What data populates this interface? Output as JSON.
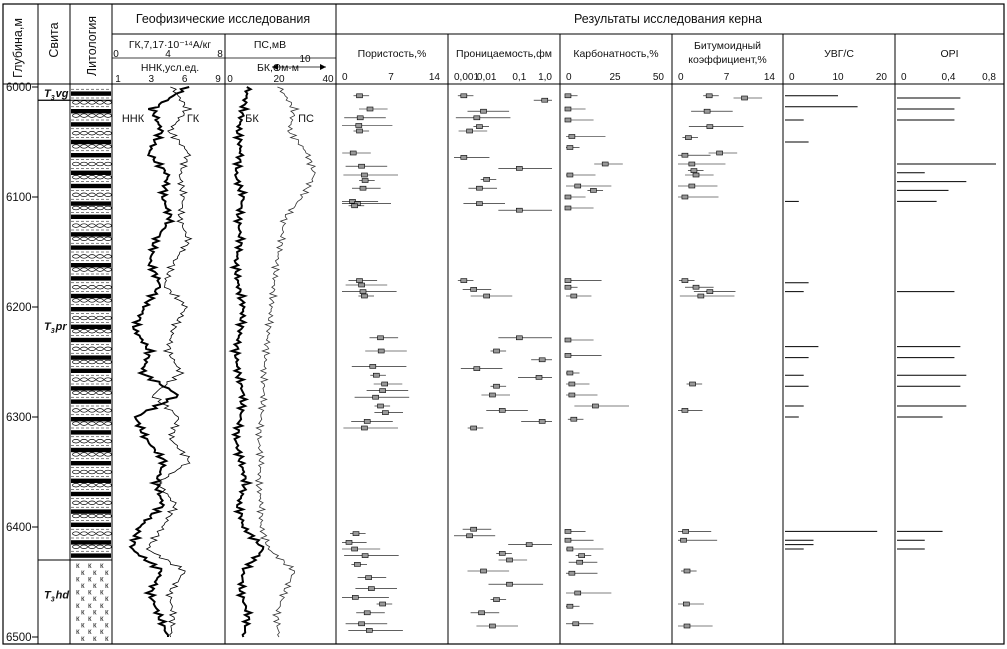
{
  "headers": {
    "depth": "Глубина,м",
    "suite": "Свита",
    "lithology": "Литология",
    "geophysics": "Геофизические исследования",
    "core_results": "Результаты исследования керна"
  },
  "geophysics_tracks": {
    "track1": {
      "label_top": "ГК,7,17·10⁻¹⁴А/кг",
      "label_bottom": "ННК,усл.ед.",
      "gk_ticks": [
        "0",
        "4",
        "8"
      ],
      "nnk_ticks": [
        "1",
        "3",
        "6",
        "9"
      ],
      "curve_names": [
        "ННК",
        "ГК"
      ]
    },
    "track2": {
      "label_top": "ПС,мВ",
      "ps_scale": "10",
      "label_bottom": "БК,Ом·м",
      "bk_ticks": [
        "0",
        "20",
        "40"
      ],
      "curve_names": [
        "БК",
        "ПС"
      ]
    }
  },
  "core_columns": [
    {
      "title": "Пористость,%",
      "ticks": [
        "0",
        "7",
        "14"
      ]
    },
    {
      "title": "Проницаемость,фм",
      "ticks": [
        "0,001",
        "0,01",
        "0,1",
        "1,0"
      ]
    },
    {
      "title": "Карбонатность,%",
      "ticks": [
        "0",
        "25",
        "50"
      ]
    },
    {
      "title_line1": "Битумоидный",
      "title_line2": "коэффициент,%",
      "ticks": [
        "0",
        "7",
        "14"
      ]
    },
    {
      "title": "УВГ/С",
      "ticks": [
        "0",
        "10",
        "20"
      ]
    },
    {
      "title": "OPI",
      "ticks": [
        "0",
        "0,4",
        "0,8"
      ]
    }
  ],
  "depth_labels": [
    "6000",
    "6100",
    "6200",
    "6300",
    "6400",
    "6500"
  ],
  "suites": [
    {
      "label": "T₃vg",
      "top": 6000,
      "bottom": 6012
    },
    {
      "label": "T₃pr",
      "top": 6012,
      "bottom": 6430
    },
    {
      "label": "T₃hd",
      "top": 6430,
      "bottom": 6500
    }
  ],
  "chart_data": [
    {
      "type": "line",
      "title": "Геофизические исследования",
      "y_axis": "Глубина,м",
      "ylim": [
        6000,
        6500
      ],
      "series": [
        {
          "name": "ННК",
          "unit": "усл.ед.",
          "xlim": [
            1,
            9
          ],
          "depth": [
            6000,
            6020,
            6040,
            6060,
            6080,
            6100,
            6120,
            6140,
            6160,
            6180,
            6200,
            6220,
            6240,
            6260,
            6280,
            6300,
            6320,
            6340,
            6360,
            6380,
            6400,
            6420,
            6440,
            6460,
            6480,
            6500
          ],
          "values": [
            6.5,
            3.8,
            4.5,
            3.5,
            5.0,
            4.6,
            5.2,
            4.0,
            3.6,
            4.4,
            3.2,
            2.4,
            3.6,
            3.0,
            5.8,
            2.5,
            3.3,
            4.7,
            4.1,
            4.6,
            2.8,
            2.2,
            4.5,
            3.6,
            4.3,
            5.0
          ]
        },
        {
          "name": "ГК",
          "unit": "7,17·10⁻¹⁴А/кг",
          "xlim": [
            0,
            8
          ],
          "depth": [
            6000,
            6020,
            6040,
            6060,
            6080,
            6100,
            6120,
            6140,
            6160,
            6180,
            6200,
            6220,
            6240,
            6260,
            6280,
            6300,
            6320,
            6340,
            6360,
            6380,
            6400,
            6420,
            6440,
            6460,
            6480,
            6500
          ],
          "values": [
            4.3,
            5.5,
            4.1,
            5.6,
            4.9,
            5.2,
            4.9,
            5.6,
            4.4,
            3.7,
            5.4,
            4.4,
            4.0,
            5.0,
            2.8,
            4.8,
            4.2,
            5.7,
            3.2,
            4.6,
            3.6,
            2.4,
            5.3,
            4.1,
            4.4,
            4.2
          ]
        },
        {
          "name": "БК",
          "unit": "Ом·м",
          "xlim": [
            0,
            40
          ],
          "depth": [
            6000,
            6020,
            6040,
            6060,
            6080,
            6100,
            6120,
            6140,
            6160,
            6180,
            6200,
            6220,
            6240,
            6260,
            6280,
            6300,
            6320,
            6340,
            6360,
            6380,
            6400,
            6420,
            6440,
            6460,
            6480,
            6500
          ],
          "values": [
            8,
            6,
            4,
            5,
            3,
            6,
            4,
            5,
            3,
            4,
            6,
            5,
            3,
            4,
            6,
            5,
            3,
            5,
            7,
            4,
            6,
            14,
            6,
            5,
            8,
            6
          ]
        },
        {
          "name": "ПС",
          "unit": "мВ",
          "xlim": [
            0,
            40
          ],
          "depth": [
            6000,
            6020,
            6040,
            6060,
            6080,
            6100,
            6120,
            6140,
            6160,
            6180,
            6200,
            6220,
            6240,
            6260,
            6280,
            6300,
            6320,
            6340,
            6360,
            6380,
            6400,
            6420,
            6440,
            6460,
            6480,
            6500
          ],
          "values": [
            20,
            26,
            24,
            31,
            34,
            29,
            22,
            21,
            19,
            18,
            17,
            16,
            15,
            14,
            14,
            13,
            12,
            13,
            12,
            13,
            13,
            16,
            26,
            22,
            19,
            20
          ]
        }
      ]
    },
    {
      "type": "scatter",
      "title": "Пористость,%",
      "xlim": [
        0,
        14
      ],
      "points": [
        [
          6008,
          2.5
        ],
        [
          6020,
          4.0
        ],
        [
          6028,
          2.6
        ],
        [
          6035,
          2.4
        ],
        [
          6040,
          2.5
        ],
        [
          6060,
          1.6
        ],
        [
          6072,
          2.8
        ],
        [
          6080,
          3.2
        ],
        [
          6085,
          3.3
        ],
        [
          6092,
          3.0
        ],
        [
          6104,
          1.5
        ],
        [
          6106,
          2.2
        ],
        [
          6108,
          1.8
        ],
        [
          6176,
          2.5
        ],
        [
          6180,
          2.8
        ],
        [
          6186,
          3.0
        ],
        [
          6190,
          3.2
        ],
        [
          6228,
          5.5
        ],
        [
          6240,
          5.6
        ],
        [
          6254,
          4.4
        ],
        [
          6262,
          4.9
        ],
        [
          6270,
          6.1
        ],
        [
          6276,
          5.8
        ],
        [
          6282,
          4.8
        ],
        [
          6290,
          5.5
        ],
        [
          6296,
          6.2
        ],
        [
          6304,
          3.6
        ],
        [
          6310,
          3.2
        ],
        [
          6406,
          2.0
        ],
        [
          6414,
          1.0
        ],
        [
          6420,
          1.8
        ],
        [
          6426,
          3.3
        ],
        [
          6434,
          2.2
        ],
        [
          6446,
          3.8
        ],
        [
          6456,
          4.2
        ],
        [
          6464,
          1.9
        ],
        [
          6470,
          5.8
        ],
        [
          6478,
          3.6
        ],
        [
          6488,
          2.8
        ],
        [
          6494,
          3.9
        ]
      ]
    },
    {
      "type": "scatter",
      "title": "Проницаемость,фм",
      "xscale": "log",
      "xlim": [
        0.001,
        1.0
      ],
      "points": [
        [
          6008,
          0.002
        ],
        [
          6012,
          0.6
        ],
        [
          6022,
          0.008
        ],
        [
          6028,
          0.005
        ],
        [
          6036,
          0.006
        ],
        [
          6040,
          0.003
        ],
        [
          6064,
          0.002
        ],
        [
          6074,
          0.1
        ],
        [
          6084,
          0.01
        ],
        [
          6092,
          0.006
        ],
        [
          6106,
          0.006
        ],
        [
          6112,
          0.1
        ],
        [
          6176,
          0.002
        ],
        [
          6184,
          0.004
        ],
        [
          6190,
          0.01
        ],
        [
          6228,
          0.1
        ],
        [
          6240,
          0.02
        ],
        [
          6248,
          0.5
        ],
        [
          6256,
          0.005
        ],
        [
          6264,
          0.4
        ],
        [
          6272,
          0.02
        ],
        [
          6280,
          0.015
        ],
        [
          6294,
          0.03
        ],
        [
          6304,
          0.5
        ],
        [
          6310,
          0.004
        ],
        [
          6402,
          0.004
        ],
        [
          6408,
          0.003
        ],
        [
          6416,
          0.2
        ],
        [
          6424,
          0.03
        ],
        [
          6430,
          0.05
        ],
        [
          6440,
          0.008
        ],
        [
          6452,
          0.05
        ],
        [
          6466,
          0.02
        ],
        [
          6478,
          0.007
        ],
        [
          6490,
          0.015
        ]
      ]
    },
    {
      "type": "scatter",
      "title": "Карбонатность,%",
      "xlim": [
        0,
        50
      ],
      "points": [
        [
          6008,
          1
        ],
        [
          6020,
          1
        ],
        [
          6030,
          1
        ],
        [
          6045,
          3
        ],
        [
          6055,
          2
        ],
        [
          6070,
          20
        ],
        [
          6080,
          2
        ],
        [
          6090,
          6
        ],
        [
          6094,
          14
        ],
        [
          6100,
          1
        ],
        [
          6110,
          1
        ],
        [
          6176,
          1
        ],
        [
          6182,
          1
        ],
        [
          6190,
          4
        ],
        [
          6230,
          1
        ],
        [
          6244,
          1
        ],
        [
          6260,
          2
        ],
        [
          6270,
          3
        ],
        [
          6280,
          3
        ],
        [
          6290,
          15
        ],
        [
          6302,
          4
        ],
        [
          6404,
          1
        ],
        [
          6412,
          1
        ],
        [
          6420,
          2
        ],
        [
          6426,
          8
        ],
        [
          6432,
          7
        ],
        [
          6442,
          3
        ],
        [
          6460,
          6
        ],
        [
          6472,
          2
        ],
        [
          6488,
          5
        ]
      ]
    },
    {
      "type": "scatter",
      "title": "Битумоидный коэффициент,%",
      "xlim": [
        0,
        14
      ],
      "points": [
        [
          6008,
          4.5
        ],
        [
          6010,
          9.6
        ],
        [
          6022,
          4.2
        ],
        [
          6036,
          4.6
        ],
        [
          6046,
          1.5
        ],
        [
          6060,
          6.0
        ],
        [
          6062,
          1.0
        ],
        [
          6070,
          2.0
        ],
        [
          6076,
          2.3
        ],
        [
          6080,
          2.6
        ],
        [
          6090,
          2.0
        ],
        [
          6100,
          1.0
        ],
        [
          6176,
          1.0
        ],
        [
          6182,
          2.6
        ],
        [
          6186,
          4.6
        ],
        [
          6190,
          3.3
        ],
        [
          6270,
          2.1
        ],
        [
          6294,
          1.0
        ],
        [
          6404,
          1.1
        ],
        [
          6412,
          0.8
        ],
        [
          6440,
          1.3
        ],
        [
          6470,
          1.2
        ],
        [
          6490,
          1.3
        ]
      ]
    },
    {
      "type": "bar",
      "title": "УВГ/С",
      "xlim": [
        0,
        20
      ],
      "depth": [
        6008,
        6018,
        6030,
        6050,
        6104,
        6178,
        6186,
        6236,
        6246,
        6262,
        6272,
        6290,
        6300,
        6404,
        6412,
        6416,
        6420
      ],
      "values": [
        10,
        14,
        3,
        4,
        2,
        4,
        3,
        6,
        4,
        3,
        4,
        3,
        2,
        18,
        5,
        5,
        3
      ]
    },
    {
      "type": "bar",
      "title": "OPI",
      "xlim": [
        0,
        0.8
      ],
      "depth": [
        6010,
        6020,
        6030,
        6070,
        6078,
        6086,
        6094,
        6104,
        6186,
        6236,
        6246,
        6262,
        6272,
        6290,
        6300,
        6404,
        6412,
        6420
      ],
      "values": [
        0.5,
        0.45,
        0.45,
        0.8,
        0.2,
        0.55,
        0.4,
        0.3,
        0.45,
        0.5,
        0.45,
        0.55,
        0.5,
        0.55,
        0.35,
        0.35,
        0.2,
        0.2
      ]
    }
  ]
}
